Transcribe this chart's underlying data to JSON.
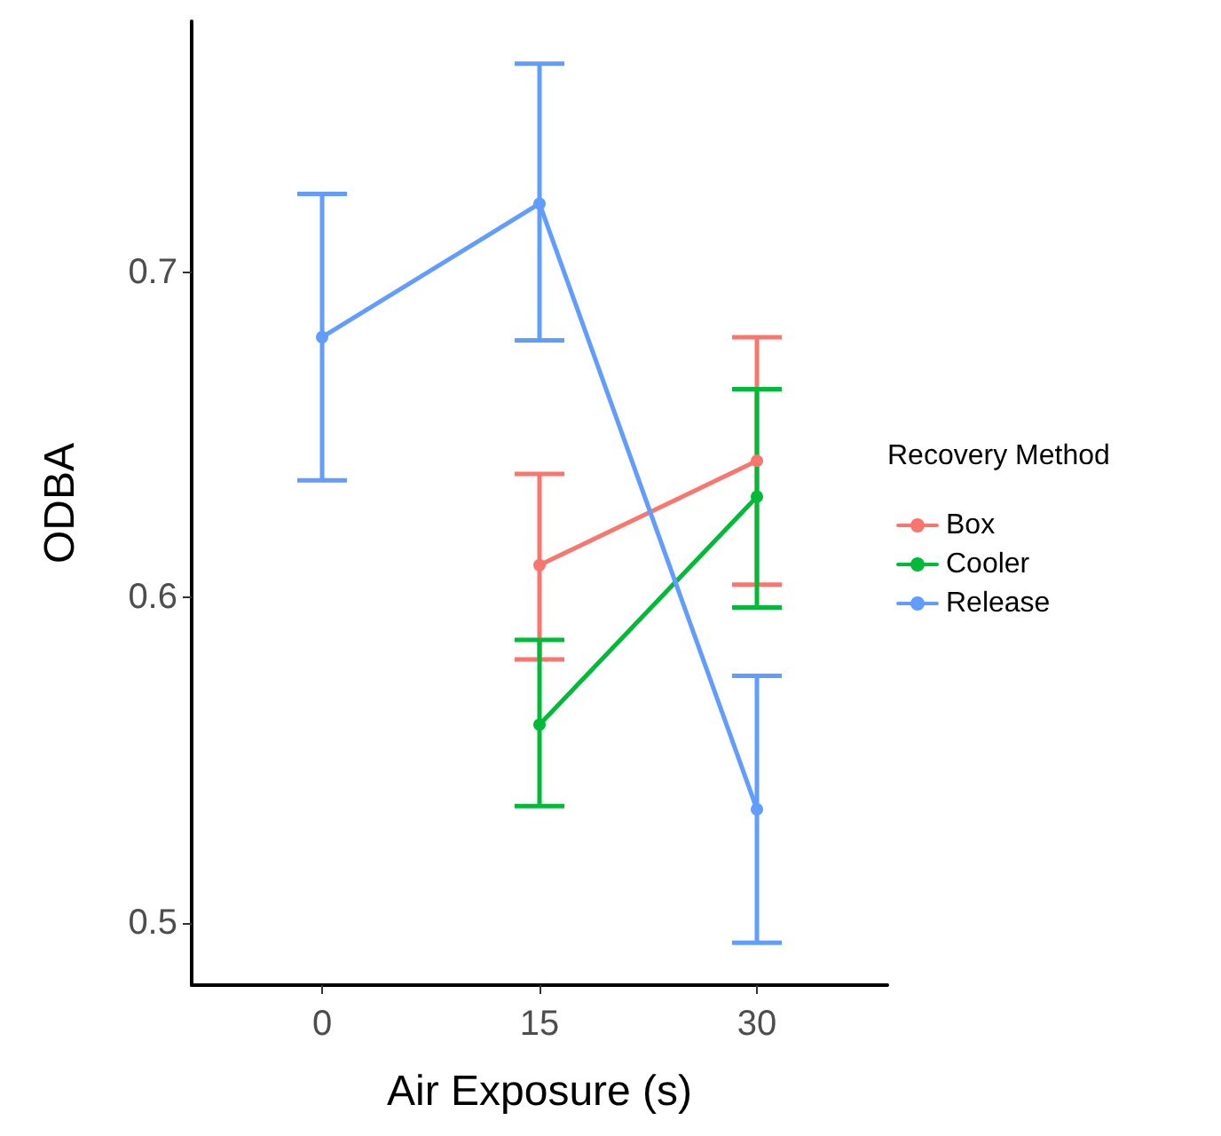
{
  "chart_data": {
    "type": "line",
    "xlabel": "Air Exposure (s)",
    "ylabel": "ODBA",
    "legend_title": "Recovery Method",
    "xlim": [
      -9,
      39
    ],
    "xticks": [
      0,
      15,
      30
    ],
    "ylim": [
      0.481,
      0.777
    ],
    "yticks": [
      0.5,
      0.6,
      0.7
    ],
    "series": [
      {
        "name": "Box",
        "color": "#f8766d",
        "x": [
          15,
          30
        ],
        "values": [
          0.61,
          0.642
        ],
        "errors": [
          [
            0.581,
            0.638
          ],
          [
            0.604,
            0.68
          ]
        ]
      },
      {
        "name": "Cooler",
        "color": "#00ba38",
        "x": [
          15,
          30
        ],
        "values": [
          0.561,
          0.631
        ],
        "errors": [
          [
            0.536,
            0.587
          ],
          [
            0.597,
            0.664
          ]
        ]
      },
      {
        "name": "Release",
        "color": "#619cff",
        "x": [
          0,
          15,
          30
        ],
        "values": [
          0.68,
          0.721,
          0.535
        ],
        "errors": [
          [
            0.636,
            0.724
          ],
          [
            0.679,
            0.764
          ],
          [
            0.494,
            0.576
          ]
        ]
      }
    ],
    "grid": false,
    "legend": "right",
    "marker": "circle",
    "line_style": "solid"
  }
}
